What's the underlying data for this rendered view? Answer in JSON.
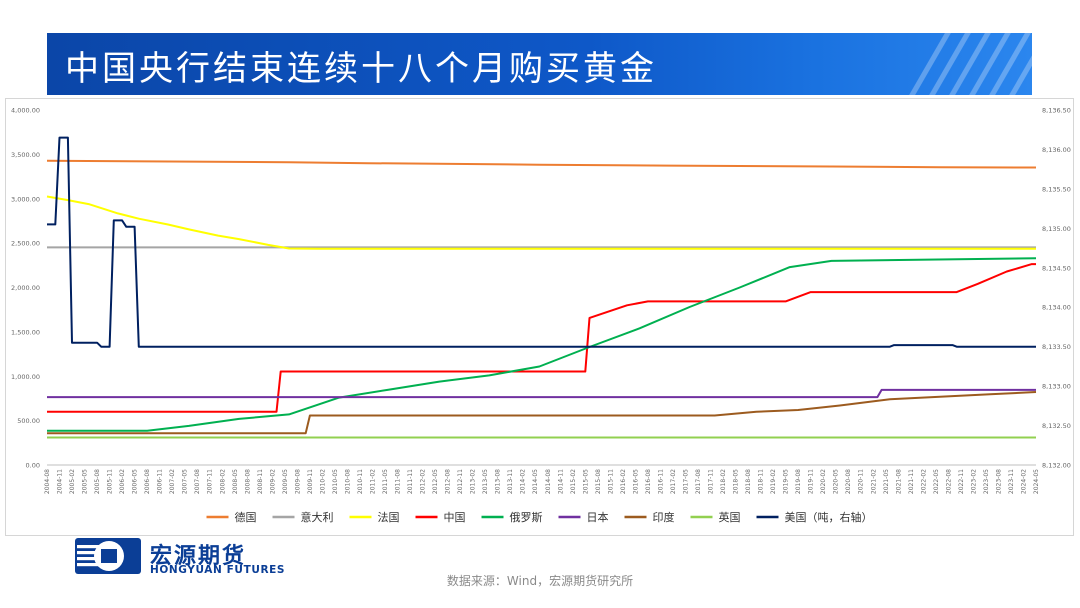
{
  "title": "中国央行结束连续十八个月购买黄金",
  "source": "数据来源：Wind，宏源期货研究所",
  "logo": {
    "cn": "宏源期货",
    "en": "HONGYUAN FUTURES",
    "color": "#0b3e96"
  },
  "chart_data": {
    "type": "line",
    "xlabel": "",
    "ylabel": "",
    "ylim": [
      0,
      4000
    ],
    "y_ticks": [
      "0.00",
      "500.00",
      "1,000.00",
      "1,500.00",
      "2,000.00",
      "2,500.00",
      "3,000.00",
      "3,500.00",
      "4,000.00"
    ],
    "y2lim": [
      8132.0,
      8136.5
    ],
    "y2_ticks": [
      "8,132.00",
      "8,132.50",
      "8,133.00",
      "8,133.50",
      "8,134.00",
      "8,134.50",
      "8,135.00",
      "8,135.50",
      "8,136.00",
      "8,136.50"
    ],
    "x_range": [
      "2004-08",
      "2024-05"
    ],
    "x_ticks": [
      "2004-08",
      "2004-11",
      "2005-02",
      "2005-05",
      "2005-08",
      "2005-11",
      "2006-02",
      "2006-05",
      "2006-08",
      "2006-11",
      "2007-02",
      "2007-05",
      "2007-08",
      "2007-11",
      "2008-02",
      "2008-05",
      "2008-08",
      "2008-11",
      "2009-02",
      "2009-05",
      "2009-08",
      "2009-11",
      "2010-02",
      "2010-05",
      "2010-08",
      "2010-11",
      "2011-02",
      "2011-05",
      "2011-08",
      "2011-11",
      "2012-02",
      "2012-05",
      "2012-08",
      "2012-11",
      "2013-02",
      "2013-05",
      "2013-08",
      "2013-11",
      "2014-02",
      "2014-05",
      "2014-08",
      "2014-11",
      "2015-02",
      "2015-05",
      "2015-08",
      "2015-11",
      "2016-02",
      "2016-05",
      "2016-08",
      "2016-11",
      "2017-02",
      "2017-05",
      "2017-08",
      "2017-11",
      "2018-02",
      "2018-05",
      "2018-08",
      "2018-11",
      "2019-02",
      "2019-05",
      "2019-08",
      "2019-11",
      "2020-02",
      "2020-05",
      "2020-08",
      "2020-11",
      "2021-02",
      "2021-05",
      "2021-08",
      "2021-11",
      "2022-02",
      "2022-05",
      "2022-08",
      "2022-11",
      "2023-02",
      "2023-05",
      "2023-08",
      "2023-11",
      "2024-02",
      "2024-05"
    ],
    "grid": false,
    "legend_position": "bottom",
    "series": [
      {
        "name": "德国",
        "color": "#ed7d31",
        "axis": "left",
        "points": [
          [
            "2004-08",
            3428
          ],
          [
            "2009-06",
            3412
          ],
          [
            "2011-01",
            3401
          ],
          [
            "2014-06",
            3384
          ],
          [
            "2017-01",
            3374
          ],
          [
            "2020-04",
            3363
          ],
          [
            "2022-06",
            3355
          ],
          [
            "2024-05",
            3352
          ]
        ]
      },
      {
        "name": "意大利",
        "color": "#a5a5a5",
        "axis": "left",
        "points": [
          [
            "2004-08",
            2452
          ],
          [
            "2024-05",
            2452
          ]
        ]
      },
      {
        "name": "法国",
        "color": "#ffff00",
        "axis": "left",
        "points": [
          [
            "2004-08",
            3025
          ],
          [
            "2005-01",
            2985
          ],
          [
            "2005-06",
            2940
          ],
          [
            "2006-01",
            2835
          ],
          [
            "2006-06",
            2775
          ],
          [
            "2007-01",
            2710
          ],
          [
            "2007-06",
            2655
          ],
          [
            "2008-01",
            2585
          ],
          [
            "2008-06",
            2545
          ],
          [
            "2009-01",
            2480
          ],
          [
            "2009-06",
            2440
          ],
          [
            "2010-01",
            2436
          ],
          [
            "2024-05",
            2437
          ]
        ]
      },
      {
        "name": "中国",
        "color": "#ff0000",
        "axis": "left",
        "points": [
          [
            "2004-08",
            600
          ],
          [
            "2009-03",
            600
          ],
          [
            "2009-04",
            1054
          ],
          [
            "2015-05",
            1054
          ],
          [
            "2015-06",
            1658
          ],
          [
            "2015-10",
            1721
          ],
          [
            "2016-03",
            1800
          ],
          [
            "2016-08",
            1843
          ],
          [
            "2016-10",
            1843
          ],
          [
            "2019-05",
            1843
          ],
          [
            "2019-11",
            1948
          ],
          [
            "2022-10",
            1948
          ],
          [
            "2023-03",
            2040
          ],
          [
            "2023-10",
            2180
          ],
          [
            "2024-04",
            2264
          ],
          [
            "2024-05",
            2264
          ]
        ]
      },
      {
        "name": "俄罗斯",
        "color": "#00b050",
        "axis": "left",
        "points": [
          [
            "2004-08",
            387
          ],
          [
            "2006-08",
            387
          ],
          [
            "2007-06",
            440
          ],
          [
            "2008-06",
            520
          ],
          [
            "2009-06",
            570
          ],
          [
            "2010-06",
            760
          ],
          [
            "2011-06",
            850
          ],
          [
            "2012-06",
            940
          ],
          [
            "2013-06",
            1010
          ],
          [
            "2014-06",
            1110
          ],
          [
            "2015-06",
            1330
          ],
          [
            "2016-06",
            1540
          ],
          [
            "2017-06",
            1780
          ],
          [
            "2018-06",
            2000
          ],
          [
            "2019-06",
            2230
          ],
          [
            "2020-04",
            2300
          ],
          [
            "2024-05",
            2330
          ]
        ]
      },
      {
        "name": "日本",
        "color": "#7030a0",
        "axis": "left",
        "points": [
          [
            "2004-08",
            765
          ],
          [
            "2021-03",
            765
          ],
          [
            "2021-04",
            846
          ],
          [
            "2024-05",
            846
          ]
        ]
      },
      {
        "name": "印度",
        "color": "#9c5b1f",
        "axis": "left",
        "points": [
          [
            "2004-08",
            358
          ],
          [
            "2009-10",
            358
          ],
          [
            "2009-11",
            558
          ],
          [
            "2017-12",
            558
          ],
          [
            "2018-10",
            600
          ],
          [
            "2019-08",
            620
          ],
          [
            "2020-06",
            670
          ],
          [
            "2021-06",
            740
          ],
          [
            "2022-06",
            770
          ],
          [
            "2023-06",
            797
          ],
          [
            "2024-05",
            822
          ]
        ]
      },
      {
        "name": "英国",
        "color": "#92d050",
        "axis": "left",
        "points": [
          [
            "2004-08",
            310
          ],
          [
            "2024-05",
            310
          ]
        ]
      },
      {
        "name": "美国（吨，右轴）",
        "color": "#002060",
        "axis": "right",
        "points": [
          [
            "2004-08",
            8135.05
          ],
          [
            "2004-10",
            8135.05
          ],
          [
            "2004-11",
            8136.15
          ],
          [
            "2005-01",
            8136.15
          ],
          [
            "2005-02",
            8133.55
          ],
          [
            "2005-08",
            8133.55
          ],
          [
            "2005-09",
            8133.5
          ],
          [
            "2005-11",
            8133.5
          ],
          [
            "2005-12",
            8135.1
          ],
          [
            "2006-02",
            8135.1
          ],
          [
            "2006-03",
            8135.02
          ],
          [
            "2006-05",
            8135.02
          ],
          [
            "2006-06",
            8133.5
          ],
          [
            "2021-06",
            8133.5
          ],
          [
            "2021-07",
            8133.52
          ],
          [
            "2022-09",
            8133.52
          ],
          [
            "2022-10",
            8133.5
          ],
          [
            "2024-05",
            8133.5
          ]
        ]
      }
    ]
  }
}
